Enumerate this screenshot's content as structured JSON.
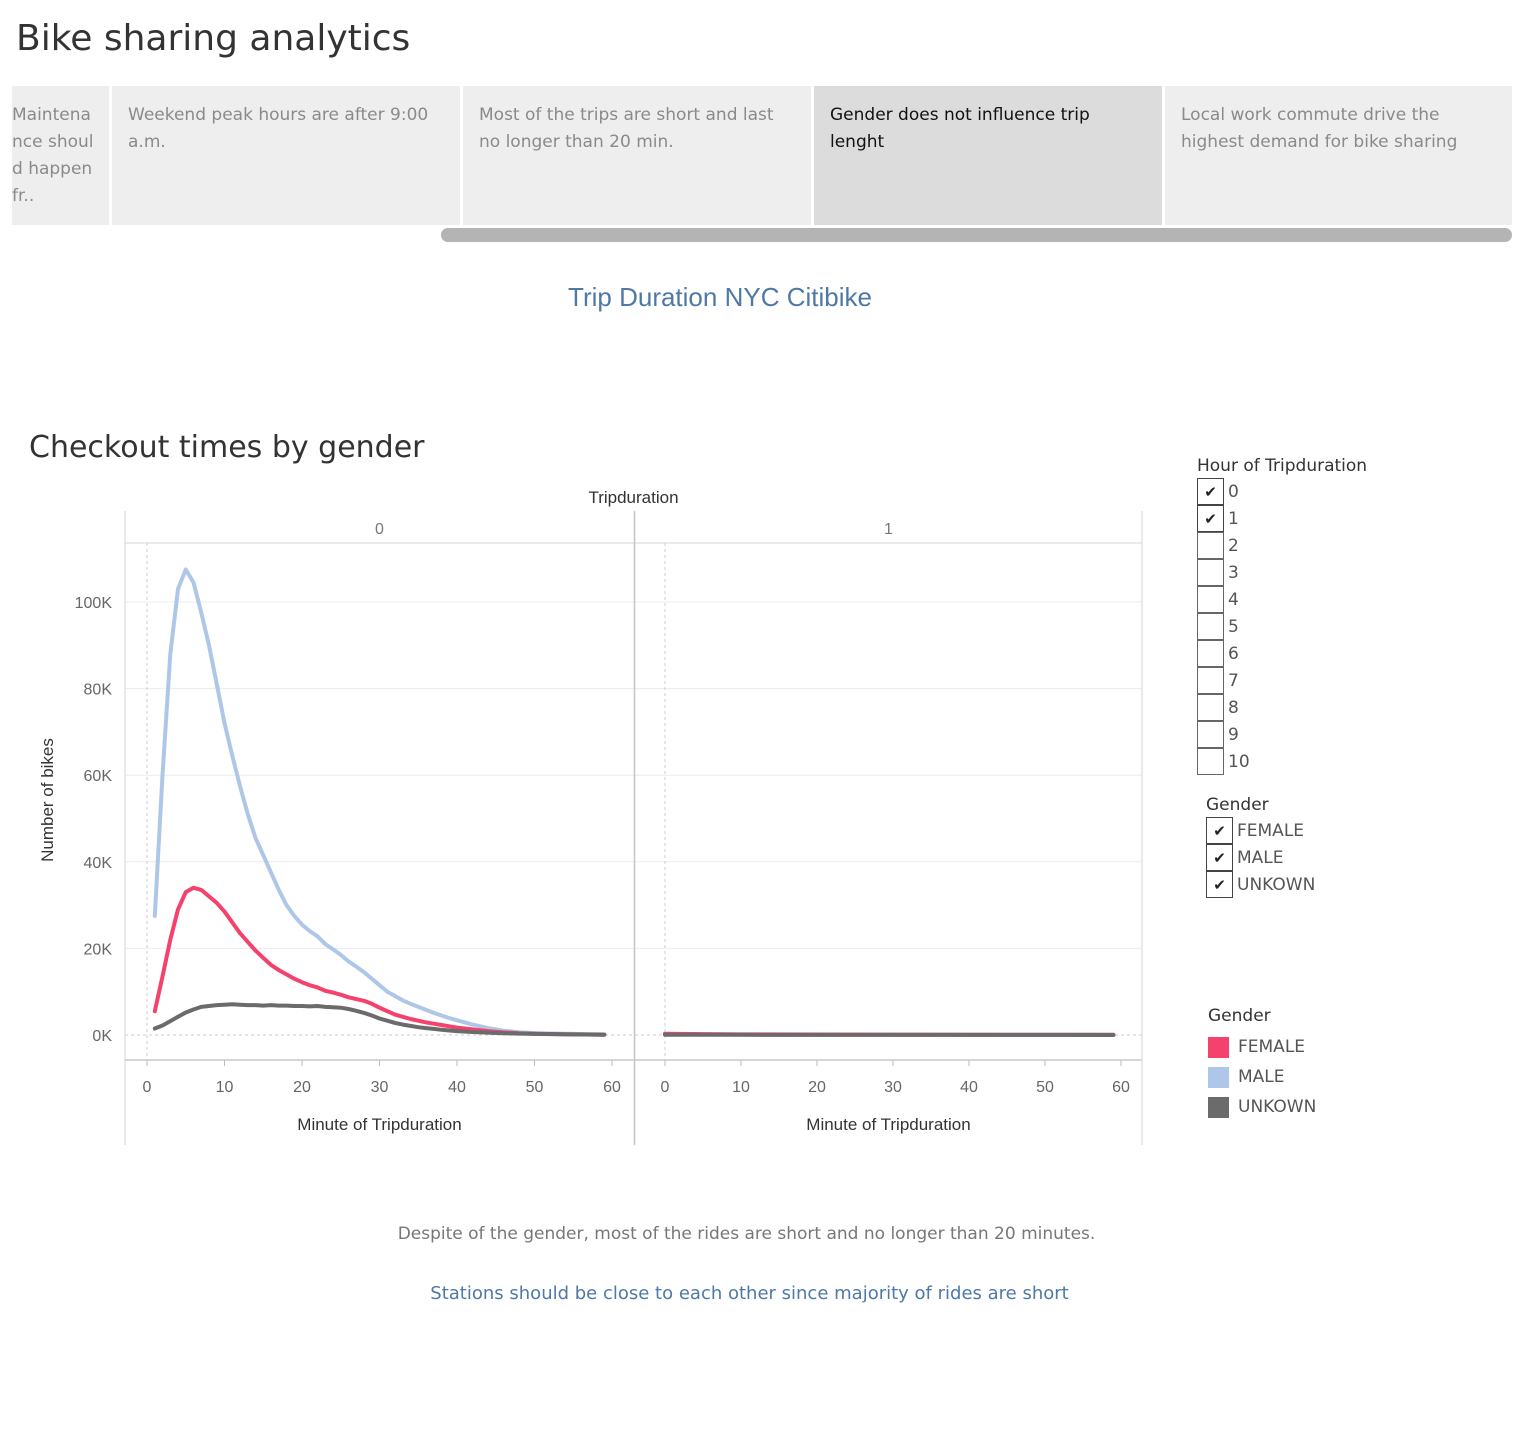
{
  "story": {
    "title": "Bike sharing analytics",
    "points": [
      {
        "lines": [
          "Maintena",
          "nce shoul",
          "d happen",
          "fr.."
        ]
      },
      {
        "text": "Weekend peak hours are after 9:00 a.m."
      },
      {
        "text": "Most of the trips are short and last no longer than 20 min."
      },
      {
        "text": "Gender does not influence trip lenght"
      },
      {
        "text": "Local work commute drive the highest demand for bike sharing"
      }
    ]
  },
  "dashboard_title": "Trip Duration NYC Citibike",
  "sheet_title": "Checkout times by gender",
  "filters": {
    "hour": {
      "title": "Hour of Tripduration",
      "options": [
        {
          "label": "0",
          "checked": true
        },
        {
          "label": "1",
          "checked": true
        },
        {
          "label": "2",
          "checked": false
        },
        {
          "label": "3",
          "checked": false
        },
        {
          "label": "4",
          "checked": false
        },
        {
          "label": "5",
          "checked": false
        },
        {
          "label": "6",
          "checked": false
        },
        {
          "label": "7",
          "checked": false
        },
        {
          "label": "8",
          "checked": false
        },
        {
          "label": "9",
          "checked": false
        },
        {
          "label": "10",
          "checked": false
        }
      ]
    },
    "gender": {
      "title": "Gender",
      "options": [
        {
          "label": "FEMALE",
          "checked": true
        },
        {
          "label": "MALE",
          "checked": true
        },
        {
          "label": "UNKOWN",
          "checked": true
        }
      ]
    }
  },
  "legend": {
    "title": "Gender",
    "items": [
      {
        "label": "FEMALE",
        "color": "#f5426c"
      },
      {
        "label": "MALE",
        "color": "#aec7e8"
      },
      {
        "label": "UNKOWN",
        "color": "#6b6b6b"
      }
    ]
  },
  "captions": {
    "note": "Despite of the gender, most of the rides are short and no longer than 20 minutes.",
    "recommendation": "Stations should be close to each other since majority of rides are short"
  },
  "chart_data": {
    "type": "line",
    "column_header": "Tripduration",
    "panels": [
      "0",
      "1"
    ],
    "xlabel": "Minute of Tripduration",
    "ylabel": "Number of bikes",
    "xlim": [
      0,
      60
    ],
    "xticks": [
      0,
      10,
      20,
      30,
      40,
      50,
      60
    ],
    "ylim": [
      0,
      110000
    ],
    "yticks": [
      0,
      20000,
      40000,
      60000,
      80000,
      100000
    ],
    "ytick_labels": [
      "0K",
      "20K",
      "40K",
      "60K",
      "80K",
      "100K"
    ],
    "grid": true,
    "series": [
      {
        "name": "MALE",
        "color": "#aec7e8",
        "panel0": [
          [
            1,
            27500
          ],
          [
            2,
            60000
          ],
          [
            3,
            88000
          ],
          [
            4,
            103000
          ],
          [
            5,
            107500
          ],
          [
            6,
            104500
          ],
          [
            7,
            97500
          ],
          [
            8,
            90000
          ],
          [
            9,
            81000
          ],
          [
            10,
            72000
          ],
          [
            11,
            64500
          ],
          [
            12,
            57500
          ],
          [
            13,
            51000
          ],
          [
            14,
            45500
          ],
          [
            15,
            41500
          ],
          [
            16,
            37500
          ],
          [
            17,
            33500
          ],
          [
            18,
            30000
          ],
          [
            19,
            27500
          ],
          [
            20,
            25500
          ],
          [
            21,
            24000
          ],
          [
            22,
            22800
          ],
          [
            23,
            21000
          ],
          [
            24,
            19800
          ],
          [
            25,
            18500
          ],
          [
            26,
            17000
          ],
          [
            27,
            15800
          ],
          [
            28,
            14500
          ],
          [
            29,
            13000
          ],
          [
            30,
            11500
          ],
          [
            31,
            10000
          ],
          [
            32,
            9000
          ],
          [
            33,
            8000
          ],
          [
            34,
            7200
          ],
          [
            35,
            6500
          ],
          [
            36,
            5800
          ],
          [
            37,
            5100
          ],
          [
            38,
            4500
          ],
          [
            39,
            3900
          ],
          [
            40,
            3400
          ],
          [
            41,
            2900
          ],
          [
            42,
            2400
          ],
          [
            43,
            2000
          ],
          [
            44,
            1600
          ],
          [
            45,
            1300
          ],
          [
            46,
            1000
          ],
          [
            47,
            800
          ],
          [
            48,
            650
          ],
          [
            49,
            550
          ],
          [
            50,
            450
          ],
          [
            52,
            350
          ],
          [
            54,
            280
          ],
          [
            56,
            220
          ],
          [
            58,
            180
          ],
          [
            59,
            150
          ]
        ],
        "panel1": [
          [
            0,
            200
          ],
          [
            10,
            100
          ],
          [
            20,
            80
          ],
          [
            30,
            60
          ],
          [
            40,
            40
          ],
          [
            50,
            30
          ],
          [
            59,
            20
          ]
        ]
      },
      {
        "name": "FEMALE",
        "color": "#f5426c",
        "panel0": [
          [
            1,
            5500
          ],
          [
            2,
            13500
          ],
          [
            3,
            22000
          ],
          [
            4,
            29000
          ],
          [
            5,
            33000
          ],
          [
            6,
            34000
          ],
          [
            7,
            33500
          ],
          [
            8,
            32000
          ],
          [
            9,
            30500
          ],
          [
            10,
            28500
          ],
          [
            11,
            26000
          ],
          [
            12,
            23500
          ],
          [
            13,
            21500
          ],
          [
            14,
            19500
          ],
          [
            15,
            17800
          ],
          [
            16,
            16200
          ],
          [
            17,
            15000
          ],
          [
            18,
            14000
          ],
          [
            19,
            13000
          ],
          [
            20,
            12200
          ],
          [
            21,
            11500
          ],
          [
            22,
            11000
          ],
          [
            23,
            10200
          ],
          [
            24,
            9800
          ],
          [
            25,
            9300
          ],
          [
            26,
            8700
          ],
          [
            27,
            8300
          ],
          [
            28,
            7900
          ],
          [
            29,
            7200
          ],
          [
            30,
            6300
          ],
          [
            31,
            5500
          ],
          [
            32,
            4700
          ],
          [
            33,
            4200
          ],
          [
            34,
            3700
          ],
          [
            35,
            3300
          ],
          [
            36,
            2900
          ],
          [
            37,
            2600
          ],
          [
            38,
            2300
          ],
          [
            39,
            2000
          ],
          [
            40,
            1700
          ],
          [
            41,
            1500
          ],
          [
            42,
            1300
          ],
          [
            43,
            1100
          ],
          [
            44,
            900
          ],
          [
            45,
            750
          ],
          [
            46,
            600
          ],
          [
            47,
            500
          ],
          [
            48,
            400
          ],
          [
            50,
            300
          ],
          [
            52,
            220
          ],
          [
            54,
            170
          ],
          [
            56,
            130
          ],
          [
            58,
            100
          ],
          [
            59,
            80
          ]
        ],
        "panel1": [
          [
            0,
            300
          ],
          [
            5,
            200
          ],
          [
            10,
            150
          ],
          [
            20,
            120
          ],
          [
            30,
            100
          ],
          [
            40,
            80
          ],
          [
            50,
            60
          ],
          [
            59,
            50
          ]
        ]
      },
      {
        "name": "UNKOWN",
        "color": "#6b6b6b",
        "panel0": [
          [
            1,
            1500
          ],
          [
            2,
            2200
          ],
          [
            3,
            3200
          ],
          [
            4,
            4200
          ],
          [
            5,
            5200
          ],
          [
            6,
            5900
          ],
          [
            7,
            6500
          ],
          [
            8,
            6700
          ],
          [
            9,
            6900
          ],
          [
            10,
            7000
          ],
          [
            11,
            7100
          ],
          [
            12,
            7000
          ],
          [
            13,
            6900
          ],
          [
            14,
            6900
          ],
          [
            15,
            6800
          ],
          [
            16,
            6900
          ],
          [
            17,
            6800
          ],
          [
            18,
            6800
          ],
          [
            19,
            6700
          ],
          [
            20,
            6700
          ],
          [
            21,
            6600
          ],
          [
            22,
            6700
          ],
          [
            23,
            6500
          ],
          [
            24,
            6400
          ],
          [
            25,
            6300
          ],
          [
            26,
            6000
          ],
          [
            27,
            5600
          ],
          [
            28,
            5100
          ],
          [
            29,
            4500
          ],
          [
            30,
            3800
          ],
          [
            31,
            3300
          ],
          [
            32,
            2800
          ],
          [
            33,
            2400
          ],
          [
            34,
            2100
          ],
          [
            35,
            1800
          ],
          [
            36,
            1600
          ],
          [
            37,
            1400
          ],
          [
            38,
            1200
          ],
          [
            39,
            1050
          ],
          [
            40,
            900
          ],
          [
            42,
            700
          ],
          [
            44,
            550
          ],
          [
            46,
            420
          ],
          [
            48,
            320
          ],
          [
            50,
            250
          ],
          [
            52,
            200
          ],
          [
            54,
            150
          ],
          [
            56,
            120
          ],
          [
            58,
            100
          ],
          [
            59,
            80
          ]
        ],
        "panel1": [
          [
            0,
            50
          ],
          [
            10,
            40
          ],
          [
            20,
            30
          ],
          [
            30,
            25
          ],
          [
            40,
            20
          ],
          [
            50,
            15
          ],
          [
            59,
            10
          ]
        ]
      }
    ]
  }
}
